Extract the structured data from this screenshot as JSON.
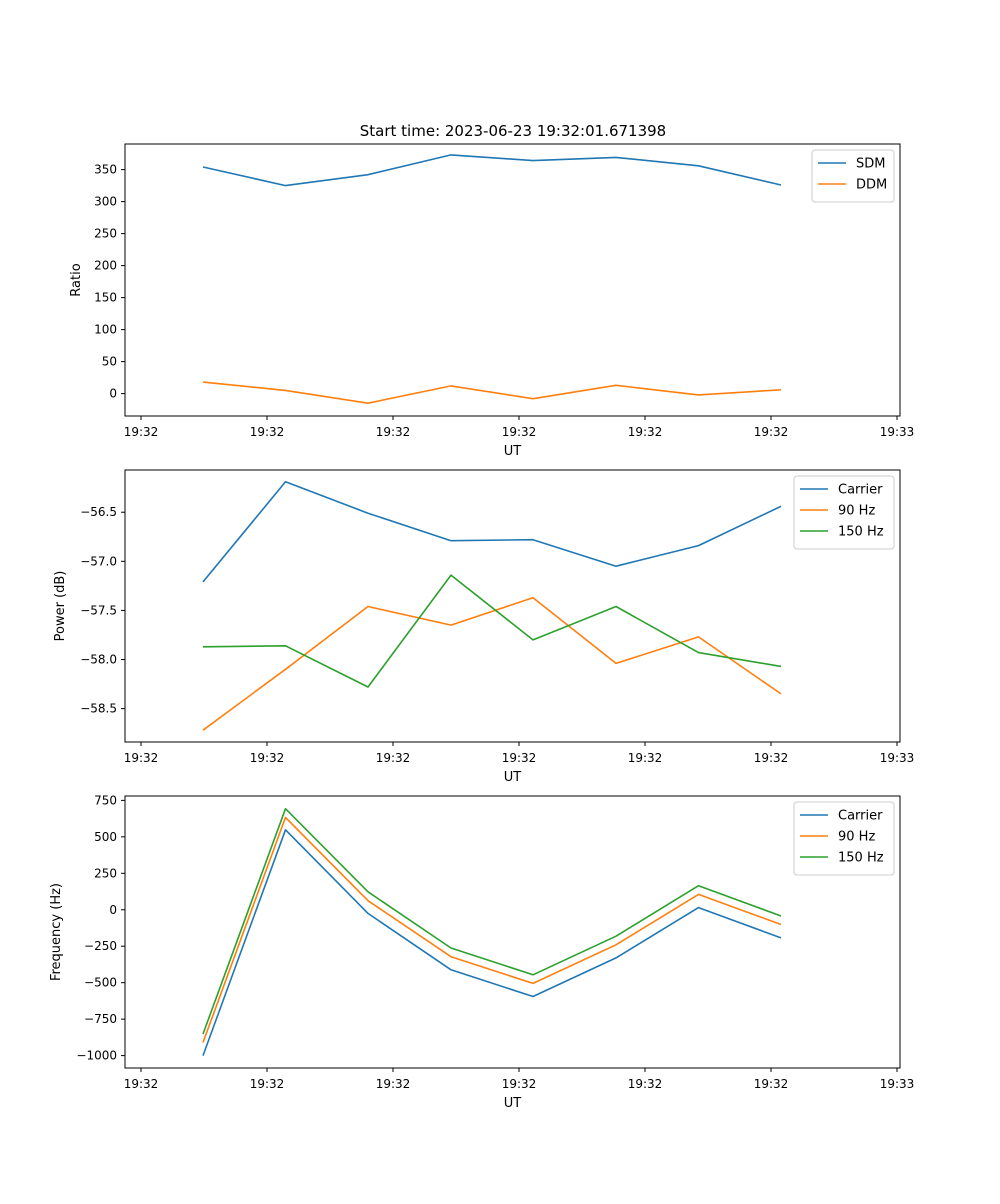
{
  "figure": {
    "title": "Start time: 2023-06-23 19:32:01.671398"
  },
  "colors": {
    "blue": "#1f77b4",
    "orange": "#ff7f0e",
    "green": "#2ca02c"
  },
  "chart_data": [
    {
      "type": "line",
      "title": "Start time: 2023-06-23 19:32:01.671398",
      "xlabel": "UT",
      "ylabel": "Ratio",
      "x_tick_labels": [
        "19:32",
        "19:32",
        "19:32",
        "19:32",
        "19:32",
        "19:32",
        "19:33"
      ],
      "y_ticks": [
        0,
        50,
        100,
        150,
        200,
        250,
        300,
        350
      ],
      "ylim": [
        -35,
        390
      ],
      "legend_position": "top-right",
      "grid": false,
      "series": [
        {
          "name": "SDM",
          "color": "#1f77b4",
          "values": [
            354,
            325,
            342,
            373,
            364,
            369,
            356,
            326
          ]
        },
        {
          "name": "DDM",
          "color": "#ff7f0e",
          "values": [
            18,
            5,
            -15,
            12,
            -8,
            13,
            -2,
            6
          ]
        }
      ]
    },
    {
      "type": "line",
      "title": "",
      "xlabel": "UT",
      "ylabel": "Power (dB)",
      "x_tick_labels": [
        "19:32",
        "19:32",
        "19:32",
        "19:32",
        "19:32",
        "19:32",
        "19:33"
      ],
      "y_ticks": [
        -58.5,
        -58.0,
        -57.5,
        -57.0,
        -56.5
      ],
      "y_tick_labels": [
        "−58.5",
        "−58.0",
        "−57.5",
        "−57.0",
        "−56.5"
      ],
      "ylim": [
        -58.84,
        -56.07
      ],
      "legend_position": "top-right",
      "grid": false,
      "series": [
        {
          "name": "Carrier",
          "color": "#1f77b4",
          "values": [
            -57.21,
            -56.19,
            -56.51,
            -56.79,
            -56.78,
            -57.05,
            -56.84,
            -56.44
          ]
        },
        {
          "name": "90 Hz",
          "color": "#ff7f0e",
          "values": [
            -58.72,
            -58.1,
            -57.46,
            -57.65,
            -57.37,
            -58.04,
            -57.77,
            -58.35
          ]
        },
        {
          "name": "150 Hz",
          "color": "#2ca02c",
          "values": [
            -57.87,
            -57.86,
            -58.28,
            -57.14,
            -57.8,
            -57.46,
            -57.93,
            -58.07
          ]
        }
      ]
    },
    {
      "type": "line",
      "title": "",
      "xlabel": "UT",
      "ylabel": "Frequency (Hz)",
      "x_tick_labels": [
        "19:32",
        "19:32",
        "19:32",
        "19:32",
        "19:32",
        "19:32",
        "19:33"
      ],
      "y_ticks": [
        -1000,
        -750,
        -500,
        -250,
        0,
        250,
        500,
        750
      ],
      "y_tick_labels": [
        "−1000",
        "−750",
        "−500",
        "−250",
        "0",
        "250",
        "500",
        "750"
      ],
      "ylim": [
        -1085,
        780
      ],
      "legend_position": "top-right",
      "grid": false,
      "series": [
        {
          "name": "Carrier",
          "color": "#1f77b4",
          "values": [
            -1000,
            548,
            -25,
            -412,
            -595,
            -330,
            15,
            -193
          ]
        },
        {
          "name": "90 Hz",
          "color": "#ff7f0e",
          "values": [
            -910,
            633,
            62,
            -322,
            -505,
            -240,
            105,
            -101
          ]
        },
        {
          "name": "150 Hz",
          "color": "#2ca02c",
          "values": [
            -852,
            693,
            123,
            -262,
            -446,
            -181,
            165,
            -43
          ]
        }
      ]
    }
  ]
}
